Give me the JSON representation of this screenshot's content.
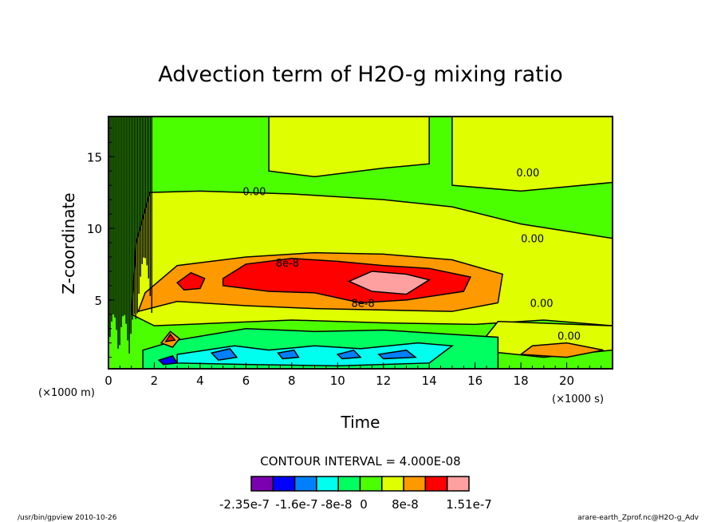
{
  "chart_data": {
    "type": "heatmap",
    "title": "Advection term of H2O-g mixing ratio",
    "xlabel": "Time",
    "ylabel": "Z-coordinate",
    "x_unit": "(×1000 s)",
    "y_unit": "(×1000 m)",
    "xlim": [
      0,
      22
    ],
    "ylim": [
      0.2,
      17.8
    ],
    "x_ticks": [
      "0",
      "2",
      "4",
      "6",
      "8",
      "10",
      "12",
      "14",
      "16",
      "18",
      "20"
    ],
    "y_ticks": [
      "5",
      "10",
      "15"
    ],
    "contour_interval": "CONTOUR INTERVAL = 4.000E-08",
    "colorbar": {
      "colors": [
        "#7b00b0",
        "#0000ff",
        "#0080ff",
        "#00ffee",
        "#00ff60",
        "#4cff00",
        "#dfff00",
        "#ff9900",
        "#ff0000",
        "#ffa0a0"
      ],
      "labels": [
        "-2.35e-7",
        "-1.6e-7",
        "-8e-8",
        "0",
        "8e-8",
        "1.51e-7"
      ]
    },
    "background_level": 5,
    "regions": [
      {
        "level": 6,
        "points": [
          [
            1,
            4
          ],
          [
            2,
            3.2
          ],
          [
            5,
            3.4
          ],
          [
            8,
            3.6
          ],
          [
            12,
            3.4
          ],
          [
            16,
            3.3
          ],
          [
            19,
            3.6
          ],
          [
            22,
            3.2
          ],
          [
            22,
            9.3
          ],
          [
            20,
            9.8
          ],
          [
            18,
            10.3
          ],
          [
            15,
            11.5
          ],
          [
            12,
            12
          ],
          [
            8,
            12.4
          ],
          [
            4,
            12.6
          ],
          [
            1.8,
            12.5
          ],
          [
            1.2,
            9
          ]
        ]
      },
      {
        "level": 6,
        "points": [
          [
            7,
            14
          ],
          [
            9,
            13.6
          ],
          [
            12,
            14.2
          ],
          [
            14,
            14.5
          ],
          [
            14,
            17.8
          ],
          [
            7,
            17.8
          ]
        ]
      },
      {
        "level": 6,
        "points": [
          [
            15,
            13
          ],
          [
            18,
            12.6
          ],
          [
            22,
            13.2
          ],
          [
            22,
            17.8
          ],
          [
            15,
            17.8
          ]
        ]
      },
      {
        "level": 6,
        "points": [
          [
            16,
            1.5
          ],
          [
            19,
            1
          ],
          [
            22,
            1.5
          ],
          [
            22,
            3.2
          ],
          [
            17,
            3.5
          ]
        ]
      },
      {
        "level": 7,
        "points": [
          [
            1.3,
            4.2
          ],
          [
            3,
            4.9
          ],
          [
            6,
            4.6
          ],
          [
            9,
            4.4
          ],
          [
            12,
            4.3
          ],
          [
            15,
            4.2
          ],
          [
            17,
            4.8
          ],
          [
            17.2,
            6.8
          ],
          [
            15,
            7.8
          ],
          [
            12,
            8.2
          ],
          [
            9,
            8.3
          ],
          [
            6,
            8
          ],
          [
            3,
            7.4
          ],
          [
            1.6,
            5.5
          ]
        ]
      },
      {
        "level": 7,
        "points": [
          [
            18,
            1.2
          ],
          [
            20,
            1
          ],
          [
            21.6,
            1.5
          ],
          [
            20,
            2
          ],
          [
            18.5,
            1.8
          ]
        ]
      },
      {
        "level": 8,
        "points": [
          [
            5,
            6.5
          ],
          [
            6,
            7.5
          ],
          [
            8,
            7.9
          ],
          [
            10,
            7.7
          ],
          [
            12,
            7.4
          ],
          [
            14,
            7.2
          ],
          [
            15.8,
            6.6
          ],
          [
            15.5,
            5.6
          ],
          [
            13,
            5
          ],
          [
            11,
            4.8
          ],
          [
            9,
            5.5
          ],
          [
            7,
            5.6
          ],
          [
            5,
            6
          ]
        ]
      },
      {
        "level": 8,
        "points": [
          [
            3,
            6.2
          ],
          [
            3.6,
            6.9
          ],
          [
            4.2,
            6.5
          ],
          [
            4,
            5.8
          ],
          [
            3.3,
            5.7
          ]
        ]
      },
      {
        "level": 9,
        "points": [
          [
            10.5,
            6.3
          ],
          [
            11.5,
            7
          ],
          [
            13,
            6.8
          ],
          [
            14,
            6.4
          ],
          [
            13,
            5.4
          ],
          [
            11.5,
            5.6
          ]
        ]
      },
      {
        "level": 4,
        "points": [
          [
            1.5,
            1.5
          ],
          [
            3,
            2.2
          ],
          [
            6,
            3
          ],
          [
            9,
            2.8
          ],
          [
            12,
            2.9
          ],
          [
            14,
            2.7
          ],
          [
            17,
            2.4
          ],
          [
            17,
            0.2
          ],
          [
            1.5,
            0.2
          ]
        ]
      },
      {
        "level": 3,
        "points": [
          [
            3,
            1.2
          ],
          [
            5.5,
            1.8
          ],
          [
            7,
            1.5
          ],
          [
            9,
            1.8
          ],
          [
            11,
            1.6
          ],
          [
            13.5,
            2
          ],
          [
            15,
            1.8
          ],
          [
            14,
            0.6
          ],
          [
            10,
            0.4
          ],
          [
            6,
            0.5
          ],
          [
            3,
            0.6
          ]
        ]
      },
      {
        "level": 2,
        "points": [
          [
            4.5,
            1.3
          ],
          [
            5.3,
            1.6
          ],
          [
            5.6,
            1
          ],
          [
            4.8,
            0.8
          ]
        ]
      },
      {
        "level": 2,
        "points": [
          [
            7.4,
            1.3
          ],
          [
            8.1,
            1.5
          ],
          [
            8.3,
            1
          ],
          [
            7.6,
            0.9
          ]
        ]
      },
      {
        "level": 2,
        "points": [
          [
            10,
            1.2
          ],
          [
            10.7,
            1.5
          ],
          [
            11,
            1
          ],
          [
            10.2,
            0.9
          ]
        ]
      },
      {
        "level": 2,
        "points": [
          [
            11.8,
            1.2
          ],
          [
            13,
            1.5
          ],
          [
            13.4,
            1
          ],
          [
            12,
            0.9
          ]
        ]
      },
      {
        "level": 1,
        "points": [
          [
            2.2,
            0.8
          ],
          [
            2.8,
            1.1
          ],
          [
            3,
            0.6
          ],
          [
            2.4,
            0.5
          ]
        ]
      },
      {
        "level": 7,
        "points": [
          [
            2.3,
            2
          ],
          [
            2.7,
            2.8
          ],
          [
            3.1,
            2.3
          ],
          [
            2.8,
            1.7
          ]
        ]
      },
      {
        "level": 8,
        "points": [
          [
            2.5,
            2.1
          ],
          [
            2.7,
            2.6
          ],
          [
            2.9,
            2.2
          ]
        ]
      }
    ],
    "contour_labels": [
      {
        "text": "-0.00",
        "t": 5.7,
        "z": 12.6
      },
      {
        "text": "0.00",
        "t": 17.8,
        "z": 13.9
      },
      {
        "text": "0.00",
        "t": 18,
        "z": 9.3
      },
      {
        "text": "0.00",
        "t": 18.4,
        "z": 4.8
      },
      {
        "text": "0.00",
        "t": 19.6,
        "z": 2.5
      },
      {
        "text": "8e-8",
        "t": 7.3,
        "z": 7.6
      },
      {
        "text": "8e-8",
        "t": 10.6,
        "z": 4.8
      }
    ]
  },
  "footer": {
    "left": "/usr/bin/gpview  2010-10-26",
    "right": "arare-earth_Zprof.nc@H2O-g_Adv"
  }
}
